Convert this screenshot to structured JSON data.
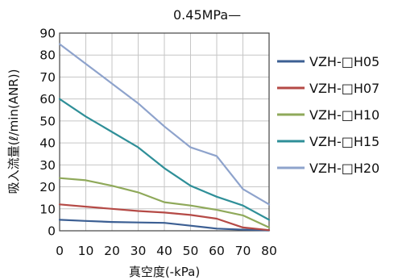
{
  "chart_data": {
    "type": "line",
    "title": "",
    "subtitle": "0.45MPa—",
    "xlabel": "真空度(-kPa)",
    "ylabel": "吸入流量(ℓ/min(ANR))",
    "x": [
      0,
      10,
      20,
      30,
      40,
      50,
      60,
      70,
      80
    ],
    "xlim": [
      0,
      80
    ],
    "ylim": [
      0,
      90
    ],
    "xticks": [
      0,
      10,
      20,
      30,
      40,
      50,
      60,
      70,
      80
    ],
    "yticks": [
      0,
      10,
      20,
      30,
      40,
      50,
      60,
      70,
      80,
      90
    ],
    "grid": true,
    "legend_position": "right",
    "series": [
      {
        "name": "VZH-□H05",
        "color": "#3c5f93",
        "values": [
          5,
          4.5,
          4,
          3.8,
          3.6,
          2.3,
          1,
          0.5,
          0.2
        ]
      },
      {
        "name": "VZH-□H07",
        "color": "#b54a46",
        "values": [
          12,
          11,
          10,
          9,
          8.3,
          7.2,
          5.5,
          1.5,
          0.3
        ]
      },
      {
        "name": "VZH-□H10",
        "color": "#8fa95a",
        "values": [
          24,
          23,
          20.5,
          17.5,
          13,
          11.5,
          9.5,
          7,
          1.5
        ]
      },
      {
        "name": "VZH-□H15",
        "color": "#2f8f98",
        "values": [
          60,
          52,
          45,
          38,
          28.5,
          20.5,
          15.5,
          11.5,
          5
        ]
      },
      {
        "name": "VZH-□H20",
        "color": "#8ea3cc",
        "values": [
          85,
          76,
          67,
          58,
          47.5,
          38,
          34,
          19,
          12
        ]
      }
    ]
  }
}
